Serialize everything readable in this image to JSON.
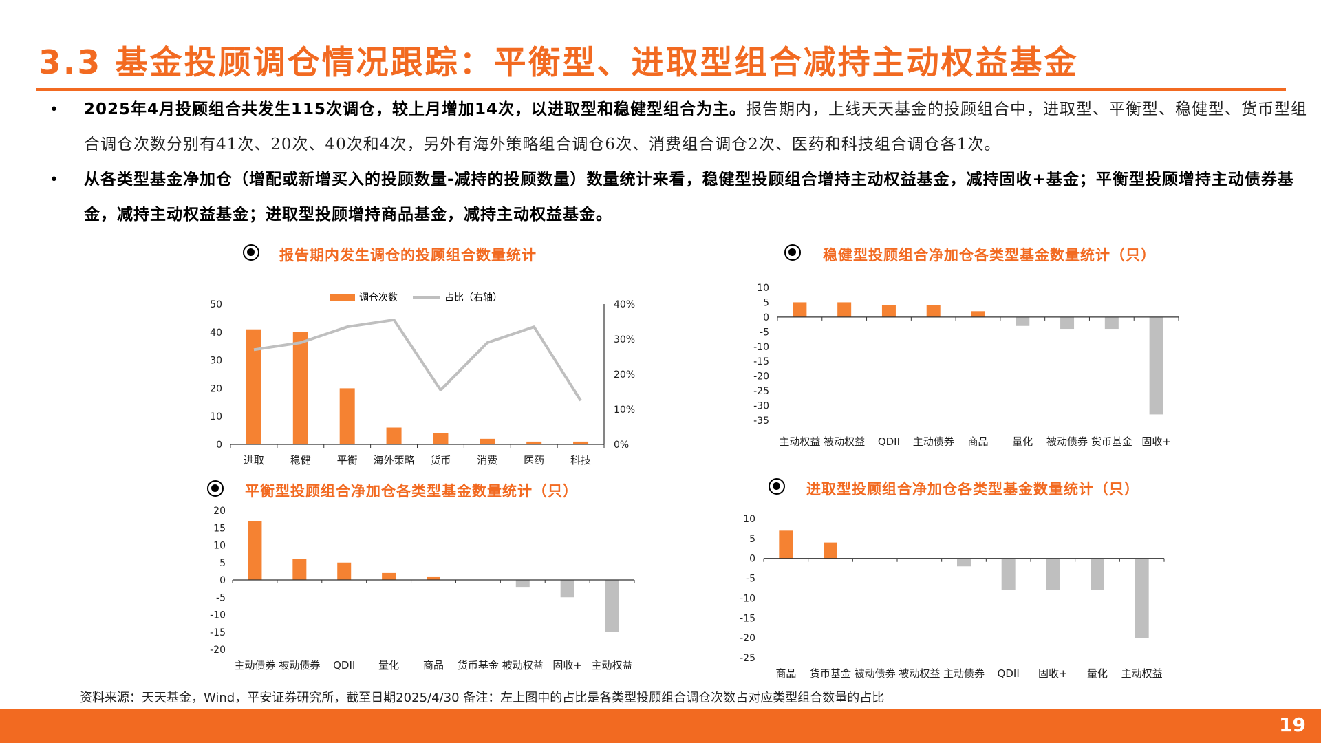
{
  "title": "3.3 基金投顾调仓情况跟踪：平衡型、进取型组合减持主动权益基金",
  "bullets": [
    {
      "bold": "2025年4月投顾组合共发生115次调仓，较上月增加14次，以进取型和稳健型组合为主。",
      "normal": "报告期内，上线天天基金的投顾组合中，进取型、平衡型、稳健型、货币型组合调仓次数分别有41次、20次、40次和4次，另外有海外策略组合调仓6次、消费组合调仓2次、医药和科技组合调仓各1次。"
    },
    {
      "bold": "从各类型基金净加仓（增配或新增买入的投顾数量-减持的投顾数量）数量统计来看，稳健型投顾组合增持主动权益基金，减持固收+基金；平衡型投顾增持主动债券基金，减持主动权益基金；进取型投顾增持商品基金，减持主动权益基金。",
      "normal": ""
    }
  ],
  "panels": {
    "tl_title": "报告期内发生调仓的投顾组合数量统计",
    "tr_title": "稳健型投顾组合净加仓各类型基金数量统计（只）",
    "bl_title": "平衡型投顾组合净加仓各类型基金数量统计（只）",
    "br_title": "进取型投顾组合净加仓各类型基金数量统计（只）"
  },
  "legend": {
    "bar": "调仓次数",
    "line": "占比（右轴）"
  },
  "colors": {
    "accent": "#f26a21",
    "bar_positive": "#f58232",
    "bar_negative": "#bfbfbf",
    "line": "#bfbfbf"
  },
  "source": "资料来源：天天基金，Wind，平安证券研究所，截至日期2025/4/30 备注：左上图中的占比是各类型投顾组合调仓次数占对应类型组合数量的占比",
  "page_number": "19",
  "chart_data": [
    {
      "id": "tl",
      "type": "bar",
      "categories": [
        "进取",
        "稳健",
        "平衡",
        "海外策略",
        "货币",
        "消费",
        "医药",
        "科技"
      ],
      "series": [
        {
          "name": "调仓次数",
          "type": "bar",
          "axis": "left",
          "values": [
            41,
            40,
            20,
            6,
            4,
            2,
            1,
            1
          ]
        },
        {
          "name": "占比（右轴）",
          "type": "line",
          "axis": "right",
          "values": [
            27,
            29,
            33.5,
            35.5,
            15.5,
            29,
            33.5,
            12.5
          ]
        }
      ],
      "ylim": [
        0,
        50
      ],
      "yticks": [
        0,
        10,
        20,
        30,
        40,
        50
      ],
      "y2lim": [
        0,
        40
      ],
      "y2ticks": [
        "0%",
        "10%",
        "20%",
        "30%",
        "40%"
      ],
      "legend": "top"
    },
    {
      "id": "tr",
      "type": "bar",
      "categories": [
        "主动权益",
        "被动权益",
        "QDII",
        "主动债券",
        "商品",
        "量化",
        "被动债券",
        "货币基金",
        "固收+"
      ],
      "values": [
        5,
        5,
        4,
        4,
        2,
        -3,
        -4,
        -4,
        -33
      ],
      "ylim": [
        -35,
        10
      ],
      "yticks": [
        10,
        5,
        0,
        -5,
        -10,
        -15,
        -20,
        -25,
        -30,
        -35
      ]
    },
    {
      "id": "bl",
      "type": "bar",
      "categories": [
        "主动债券",
        "被动债券",
        "QDII",
        "量化",
        "商品",
        "货币基金",
        "被动权益",
        "固收+",
        "主动权益"
      ],
      "values": [
        17,
        6,
        5,
        2,
        1,
        0,
        -2,
        -5,
        -15
      ],
      "ylim": [
        -20,
        20
      ],
      "yticks": [
        20,
        15,
        10,
        5,
        0,
        -5,
        -10,
        -15,
        -20
      ]
    },
    {
      "id": "br",
      "type": "bar",
      "categories": [
        "商品",
        "货币基金",
        "被动债券",
        "被动权益",
        "主动债券",
        "QDII",
        "固收+",
        "量化",
        "主动权益"
      ],
      "values": [
        7,
        4,
        0,
        0,
        -2,
        -8,
        -8,
        -8,
        -20
      ],
      "ylim": [
        -25,
        10
      ],
      "yticks": [
        10,
        5,
        0,
        -5,
        -10,
        -15,
        -20,
        -25
      ]
    }
  ]
}
